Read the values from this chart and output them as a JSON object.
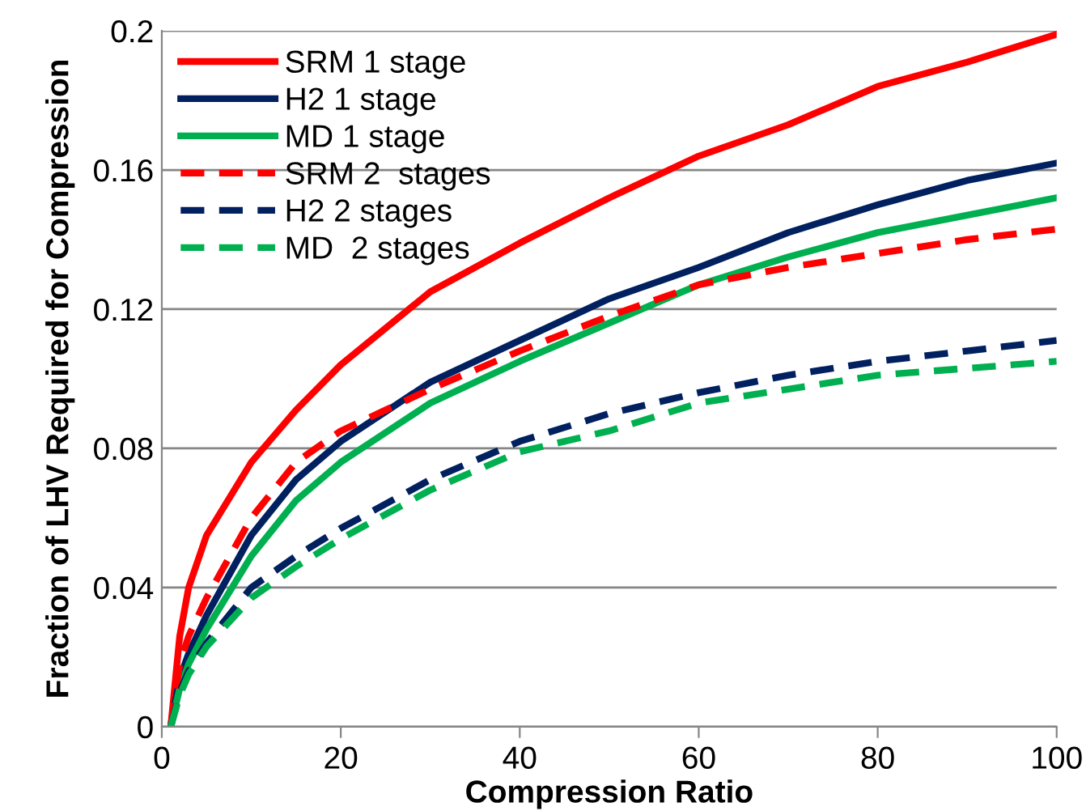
{
  "chart_data": {
    "type": "line",
    "xlabel": "Compression Ratio",
    "ylabel": "Fraction of LHV Required for Compression",
    "xlim": [
      0,
      100
    ],
    "xticks": [
      0,
      20,
      40,
      60,
      80,
      100
    ],
    "ylim": [
      0,
      0.2
    ],
    "yticks": [
      {
        "value": 0,
        "label": "0"
      },
      {
        "value": 0.04,
        "label": "0.04"
      },
      {
        "value": 0.08,
        "label": "0.08"
      },
      {
        "value": 0.12,
        "label": "0.12"
      },
      {
        "value": 0.16,
        "label": "0.16"
      },
      {
        "value": 0.2,
        "label": "0.2"
      }
    ],
    "grid": "y",
    "legend": "top left",
    "marker": "none",
    "x": [
      1,
      2,
      3,
      5,
      10,
      15,
      20,
      30,
      40,
      50,
      60,
      70,
      80,
      90,
      100
    ],
    "series": [
      {
        "name": "SRM 1 stage",
        "color": "#ff0000",
        "line_style": "solid",
        "values": [
          0,
          0.026,
          0.04,
          0.055,
          0.076,
          0.091,
          0.104,
          0.125,
          0.139,
          0.152,
          0.164,
          0.173,
          0.184,
          0.191,
          0.199
        ]
      },
      {
        "name": "H2 1 stage",
        "color": "#002060",
        "line_style": "solid",
        "values": [
          0,
          0.014,
          0.021,
          0.032,
          0.055,
          0.071,
          0.082,
          0.099,
          0.111,
          0.123,
          0.132,
          0.142,
          0.15,
          0.157,
          0.162
        ]
      },
      {
        "name": "MD 1 stage",
        "color": "#00b050",
        "line_style": "solid",
        "values": [
          0,
          0.011,
          0.018,
          0.028,
          0.049,
          0.065,
          0.076,
          0.093,
          0.105,
          0.116,
          0.127,
          0.135,
          0.142,
          0.147,
          0.152
        ]
      },
      {
        "name": "SRM 2  stages",
        "color": "#ff0000",
        "line_style": "dashed",
        "values": [
          0,
          0.018,
          0.026,
          0.037,
          0.06,
          0.076,
          0.085,
          0.097,
          0.108,
          0.118,
          0.127,
          0.132,
          0.136,
          0.14,
          0.143
        ]
      },
      {
        "name": "H2 2 stages",
        "color": "#002060",
        "line_style": "dashed",
        "values": [
          0,
          0.01,
          0.016,
          0.024,
          0.04,
          0.049,
          0.057,
          0.071,
          0.082,
          0.09,
          0.096,
          0.101,
          0.105,
          0.108,
          0.111
        ]
      },
      {
        "name": "MD  2 stages",
        "color": "#00b050",
        "line_style": "dashed",
        "values": [
          0,
          0.009,
          0.015,
          0.023,
          0.037,
          0.046,
          0.054,
          0.068,
          0.079,
          0.085,
          0.093,
          0.097,
          0.101,
          0.103,
          0.105
        ]
      }
    ]
  }
}
